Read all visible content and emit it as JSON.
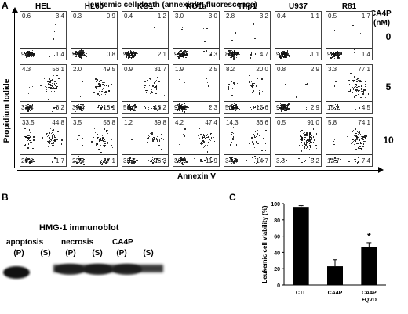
{
  "panel_a": {
    "letter": "A",
    "title": "leukemic cell death (annexin/PI fluorescence)",
    "y_axis_label": "Propidium Iodide",
    "x_axis_label": "Annexin V",
    "dose_header": "CA4P",
    "dose_unit": "(nM)",
    "columns": [
      "HEL",
      "HL60",
      "KG1",
      "KG1a",
      "Thp1",
      "U937",
      "R81"
    ],
    "rows": [
      {
        "dose": "0",
        "cells": [
          {
            "ul": "0.6",
            "ur": "3.4",
            "ll": "94.6",
            "lr": "1.4"
          },
          {
            "ul": "0.3",
            "ur": "0.9",
            "ll": "98.0",
            "lr": "0.8"
          },
          {
            "ul": "0.4",
            "ur": "1.2",
            "ll": "96.3",
            "lr": "2.1"
          },
          {
            "ul": "3.0",
            "ur": "3.0",
            "ll": "91.7",
            "lr": "2.3"
          },
          {
            "ul": "2.8",
            "ur": "3.2",
            "ll": "89.3",
            "lr": "4.7"
          },
          {
            "ul": "0.4",
            "ur": "1.1",
            "ll": "97.4",
            "lr": "1.1"
          },
          {
            "ul": "0.5",
            "ur": "1.7",
            "ll": "96.4",
            "lr": "1.4"
          }
        ]
      },
      {
        "dose": "5",
        "cells": [
          {
            "ul": "4.3",
            "ur": "56.1",
            "ll": "33.4",
            "lr": "6.2"
          },
          {
            "ul": "2.0",
            "ur": "49.5",
            "ll": "35.4",
            "lr": "13.1"
          },
          {
            "ul": "0.9",
            "ur": "31.7",
            "ll": "51.6",
            "lr": "16.2"
          },
          {
            "ul": "1.9",
            "ur": "2.5",
            "ll": "93.3",
            "lr": "2.3"
          },
          {
            "ul": "8.2",
            "ur": "20.0",
            "ll": "56.2",
            "lr": "15.6"
          },
          {
            "ul": "0.8",
            "ur": "2.9",
            "ll": "93.4",
            "lr": "2.9"
          },
          {
            "ul": "3.3",
            "ur": "77.1",
            "ll": "15.1",
            "lr": "4.5"
          }
        ]
      },
      {
        "dose": "10",
        "cells": [
          {
            "ul": "33.5",
            "ur": "44.8",
            "ll": "20.0",
            "lr": "1.7"
          },
          {
            "ul": "3.5",
            "ur": "56.8",
            "ll": "22.6",
            "lr": "17.1"
          },
          {
            "ul": "1.2",
            "ur": "39.8",
            "ll": "32.7",
            "lr": "26.3"
          },
          {
            "ul": "4.2",
            "ur": "47.4",
            "ll": "36.5",
            "lr": "11.9"
          },
          {
            "ul": "14.3",
            "ur": "36.6",
            "ll": "34.4",
            "lr": "14.7"
          },
          {
            "ul": "0.5",
            "ur": "91.0",
            "ll": "3.3",
            "lr": "5.2"
          },
          {
            "ul": "5.8",
            "ur": "74.1",
            "ll": "12.7",
            "lr": "7.4"
          }
        ]
      }
    ]
  },
  "panel_b": {
    "letter": "B",
    "title": "HMG-1 immunoblot",
    "groups": [
      {
        "label": "apoptosis",
        "lanes": [
          "(P)",
          "(S)"
        ]
      },
      {
        "label": "necrosis",
        "lanes": [
          "(P)",
          "(S)"
        ]
      },
      {
        "label": "CA4P",
        "lanes": [
          "(P)",
          "(S)"
        ]
      }
    ],
    "band_intensity": [
      1.0,
      0.0,
      0.85,
      0.9,
      0.85,
      0.0
    ]
  },
  "panel_c": {
    "letter": "C",
    "chart_data": {
      "type": "bar",
      "categories": [
        "CTL",
        "CA4P",
        "CA4P\n+QVD"
      ],
      "values": [
        96,
        23,
        47
      ],
      "errors": [
        1.5,
        8,
        5
      ],
      "ylabel": "Leukemic cell viability (%)",
      "ylim": [
        0,
        100
      ],
      "yticks": [
        0,
        20,
        40,
        60,
        80,
        100
      ],
      "annotations": [
        {
          "category_index": 2,
          "text": "*"
        }
      ],
      "grid": false,
      "bar_color": "#000000"
    }
  }
}
